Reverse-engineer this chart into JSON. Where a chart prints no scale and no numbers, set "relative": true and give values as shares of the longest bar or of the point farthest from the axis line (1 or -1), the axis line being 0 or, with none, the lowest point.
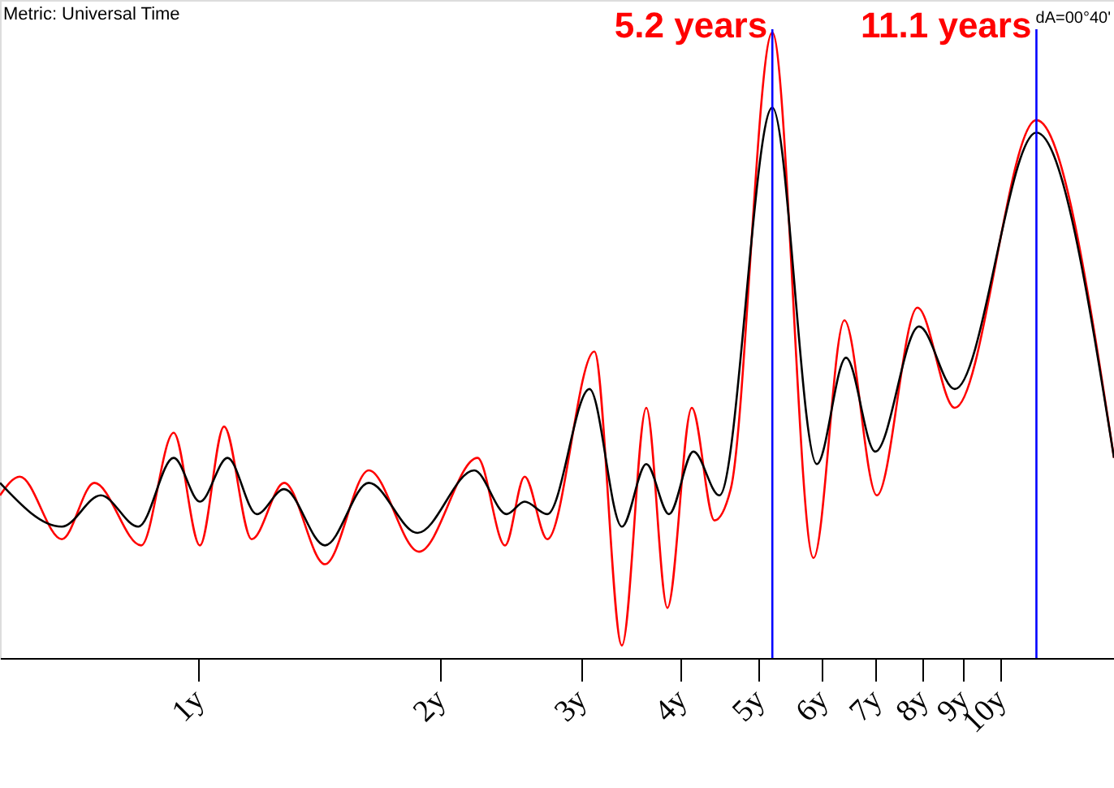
{
  "chart_data": {
    "type": "line",
    "relative": true,
    "log": "x",
    "xlim": [
      0.566,
      13.87
    ],
    "xticks": [
      {
        "value": 1,
        "label": "1y"
      },
      {
        "value": 2,
        "label": "2y"
      },
      {
        "value": 3,
        "label": "3y"
      },
      {
        "value": 4,
        "label": "4y"
      },
      {
        "value": 5,
        "label": "5y"
      },
      {
        "value": 6,
        "label": "6y"
      },
      {
        "value": 7,
        "label": "7y"
      },
      {
        "value": 8,
        "label": "8y"
      },
      {
        "value": 9,
        "label": "9y"
      },
      {
        "value": 10,
        "label": "10y"
      }
    ],
    "series": [
      {
        "color": "#ff0000",
        "x": [
          0.566,
          0.599,
          0.676,
          0.742,
          0.849,
          0.932,
          1.005,
          1.077,
          1.166,
          1.28,
          1.439,
          1.632,
          1.885,
          2.23,
          2.414,
          2.553,
          2.725,
          3.119,
          3.376,
          3.621,
          3.847,
          4.126,
          4.404,
          4.614,
          5.2,
          5.853,
          6.395,
          7.02,
          7.887,
          8.78,
          11.1,
          13.87
        ],
        "values": [
          0.26,
          0.29,
          0.19,
          0.28,
          0.18,
          0.36,
          0.18,
          0.37,
          0.19,
          0.28,
          0.15,
          0.3,
          0.17,
          0.32,
          0.18,
          0.29,
          0.19,
          0.49,
          0.02,
          0.4,
          0.08,
          0.4,
          0.22,
          0.27,
          1,
          0.16,
          0.54,
          0.26,
          0.56,
          0.4,
          0.86,
          0.32
        ]
      },
      {
        "color": "#000000",
        "x": [
          0.566,
          0.676,
          0.756,
          0.842,
          0.932,
          1.005,
          1.088,
          1.183,
          1.28,
          1.439,
          1.632,
          1.877,
          2.209,
          2.425,
          2.553,
          2.725,
          3.076,
          3.376,
          3.621,
          3.865,
          4.145,
          4.466,
          5.2,
          5.908,
          6.425,
          6.988,
          7.924,
          8.78,
          11.1,
          13.87
        ],
        "values": [
          0.28,
          0.21,
          0.26,
          0.21,
          0.32,
          0.25,
          0.32,
          0.23,
          0.27,
          0.18,
          0.28,
          0.2,
          0.3,
          0.23,
          0.25,
          0.23,
          0.43,
          0.21,
          0.31,
          0.23,
          0.33,
          0.26,
          0.88,
          0.31,
          0.48,
          0.33,
          0.53,
          0.43,
          0.84,
          0.32
        ]
      }
    ],
    "ref_lines": [
      {
        "axis": "x",
        "value": 5.2,
        "label": "5.2 years",
        "color": "#0000ff"
      },
      {
        "axis": "x",
        "value": 11.1,
        "label": "11.1 years",
        "color": "#0000ff"
      }
    ],
    "annotations": [
      "Metric: Universal Time",
      "dA=00°40'"
    ],
    "grid": false,
    "marker": "none",
    "line_style": "solid"
  }
}
